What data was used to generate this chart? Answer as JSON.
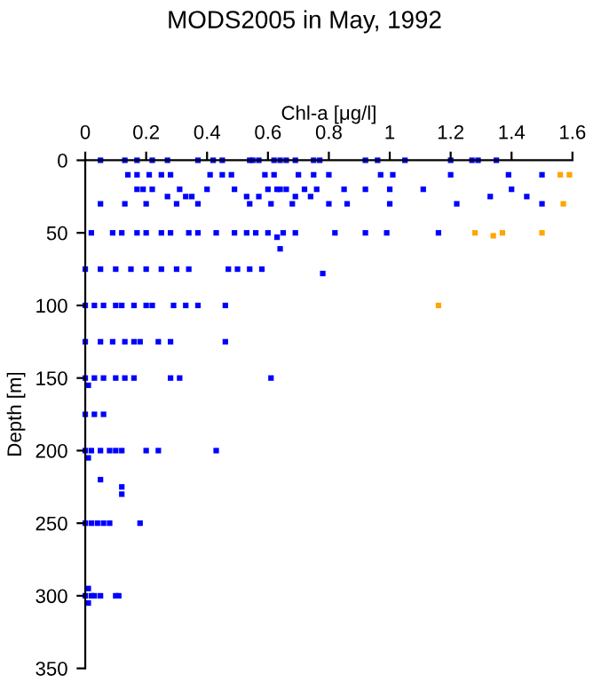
{
  "chart_data": {
    "type": "scatter",
    "title": "MODS2005 in May, 1992",
    "xlabel": "Chl-a [μg/l]",
    "ylabel": "Depth [m]",
    "xlim": [
      0,
      1.6
    ],
    "xticks": [
      0,
      0.2,
      0.4,
      0.6,
      0.8,
      1,
      1.2,
      1.4,
      1.6
    ],
    "ylim": [
      350,
      0
    ],
    "yticks": [
      0,
      50,
      100,
      150,
      200,
      250,
      300,
      350
    ],
    "marker": "square",
    "grid": false,
    "legend": false,
    "series": [
      {
        "color": "#0000ff",
        "x": [
          0.05,
          0.13,
          0.17,
          0.22,
          0.27,
          0.37,
          0.42,
          0.45,
          0.54,
          0.55,
          0.57,
          0.62,
          0.64,
          0.66,
          0.69,
          0.75,
          0.77,
          0.92,
          0.96,
          1.05,
          1.2,
          1.27,
          1.29,
          1.35,
          0.14,
          0.17,
          0.21,
          0.25,
          0.28,
          0.41,
          0.45,
          0.48,
          0.59,
          0.62,
          0.7,
          0.75,
          0.8,
          0.97,
          1.01,
          1.2,
          1.39,
          1.5,
          0.17,
          0.19,
          0.22,
          0.31,
          0.4,
          0.49,
          0.6,
          0.63,
          0.64,
          0.66,
          0.72,
          0.76,
          0.85,
          0.92,
          1.0,
          1.11,
          1.4,
          0.27,
          0.33,
          0.35,
          0.53,
          0.57,
          0.69,
          0.74,
          1.45,
          1.33,
          0.05,
          0.13,
          0.2,
          0.3,
          0.37,
          0.54,
          0.61,
          0.68,
          0.8,
          0.86,
          1.0,
          1.22,
          1.5,
          0.02,
          0.09,
          0.12,
          0.17,
          0.2,
          0.25,
          0.28,
          0.34,
          0.37,
          0.43,
          0.49,
          0.53,
          0.56,
          0.6,
          0.65,
          0.69,
          0.82,
          0.92,
          0.99,
          1.16,
          0.63,
          0.64,
          0.0,
          0.05,
          0.1,
          0.15,
          0.2,
          0.25,
          0.3,
          0.34,
          0.47,
          0.5,
          0.54,
          0.58,
          0.78,
          0.0,
          0.03,
          0.06,
          0.1,
          0.12,
          0.16,
          0.2,
          0.22,
          0.29,
          0.33,
          0.37,
          0.46,
          0.0,
          0.05,
          0.09,
          0.13,
          0.16,
          0.18,
          0.24,
          0.28,
          0.46,
          0.0,
          0.03,
          0.06,
          0.1,
          0.13,
          0.16,
          0.28,
          0.31,
          0.61,
          0.01,
          0.0,
          0.03,
          0.06,
          0.0,
          0.02,
          0.05,
          0.08,
          0.1,
          0.12,
          0.2,
          0.24,
          0.43,
          0.01,
          0.05,
          0.12,
          0.12,
          0.0,
          0.02,
          0.04,
          0.06,
          0.08,
          0.18,
          0.0,
          0.02,
          0.03,
          0.05,
          0.1,
          0.11,
          0.01,
          0.01
        ],
        "values": [
          0,
          0,
          0,
          0,
          0,
          0,
          0,
          0,
          0,
          0,
          0,
          0,
          0,
          0,
          0,
          0,
          0,
          0,
          0,
          0,
          0,
          0,
          0,
          0,
          10,
          10,
          10,
          10,
          10,
          10,
          10,
          10,
          10,
          10,
          10,
          10,
          10,
          10,
          10,
          10,
          10,
          10,
          20,
          20,
          20,
          20,
          20,
          20,
          20,
          20,
          20,
          20,
          20,
          20,
          20,
          20,
          20,
          20,
          20,
          25,
          25,
          25,
          25,
          25,
          25,
          25,
          25,
          25,
          30,
          30,
          30,
          30,
          30,
          30,
          30,
          30,
          30,
          30,
          30,
          30,
          30,
          50,
          50,
          50,
          50,
          50,
          50,
          50,
          50,
          50,
          50,
          50,
          50,
          50,
          50,
          50,
          50,
          50,
          50,
          50,
          50,
          53,
          61,
          75,
          75,
          75,
          75,
          75,
          75,
          75,
          75,
          75,
          75,
          75,
          75,
          78,
          100,
          100,
          100,
          100,
          100,
          100,
          100,
          100,
          100,
          100,
          100,
          100,
          125,
          125,
          125,
          125,
          125,
          125,
          125,
          125,
          125,
          150,
          150,
          150,
          150,
          150,
          150,
          150,
          150,
          150,
          155,
          175,
          175,
          175,
          200,
          200,
          200,
          200,
          200,
          200,
          200,
          200,
          200,
          205,
          220,
          225,
          230,
          250,
          250,
          250,
          250,
          250,
          250,
          300,
          300,
          300,
          300,
          300,
          300,
          295,
          305
        ]
      },
      {
        "color": "#ffa500",
        "x": [
          1.56,
          1.59,
          1.57,
          1.28,
          1.34,
          1.37,
          1.5,
          1.16
        ],
        "values": [
          10,
          10,
          30,
          50,
          52,
          50,
          50,
          100
        ]
      }
    ]
  }
}
